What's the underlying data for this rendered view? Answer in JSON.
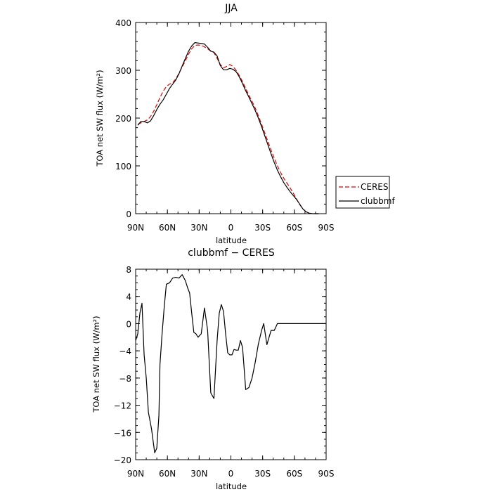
{
  "chart_data": [
    {
      "type": "line",
      "title": "JJA",
      "xlabel": "latitude",
      "ylabel": "TOA net SW flux (W/m²)",
      "xlim": [
        90,
        -90
      ],
      "ylim": [
        0,
        400
      ],
      "x_ticks": [
        90,
        60,
        30,
        0,
        -30,
        -60,
        -90
      ],
      "x_tick_labels": [
        "90N",
        "60N",
        "30N",
        "0",
        "30S",
        "60S",
        "90S"
      ],
      "y_ticks": [
        0,
        100,
        200,
        300,
        400
      ],
      "y_tick_labels": [
        "0",
        "100",
        "200",
        "300",
        "400"
      ],
      "legend": {
        "placement": "outside-right",
        "entries": [
          "CERES",
          "clubbmf"
        ]
      },
      "series": [
        {
          "name": "CERES",
          "color": "#e00000",
          "style": "dashed",
          "x": [
            88,
            85,
            82,
            79,
            76,
            73,
            70,
            67,
            64,
            61,
            58,
            55,
            52,
            49,
            46,
            43,
            40,
            37,
            34,
            31,
            28,
            25,
            22,
            19,
            16,
            13,
            10,
            7,
            4,
            1,
            -2,
            -5,
            -8,
            -11,
            -14,
            -17,
            -20,
            -23,
            -26,
            -29,
            -32,
            -35,
            -38,
            -41,
            -44,
            -47,
            -50,
            -53,
            -56,
            -59,
            -62,
            -65,
            -68,
            -71,
            -74,
            -77,
            -80,
            -83
          ],
          "values": [
            187,
            190,
            193,
            196,
            203,
            214,
            228,
            243,
            256,
            266,
            271,
            274,
            282,
            294,
            307,
            320,
            334,
            345,
            352,
            353,
            352,
            349,
            345,
            340,
            337,
            325,
            312,
            305,
            308,
            312,
            308,
            300,
            289,
            276,
            262,
            248,
            235,
            221,
            205,
            187,
            169,
            151,
            133,
            116,
            100,
            86,
            74,
            64,
            54,
            43,
            31,
            19,
            10,
            4,
            1,
            0,
            0,
            0
          ]
        },
        {
          "name": "clubbmf",
          "color": "#000000",
          "style": "solid",
          "x": [
            88,
            85,
            82,
            79,
            76,
            73,
            70,
            67,
            64,
            61,
            58,
            55,
            52,
            49,
            46,
            43,
            40,
            37,
            34,
            31,
            28,
            25,
            22,
            19,
            16,
            13,
            10,
            7,
            4,
            1,
            -2,
            -5,
            -8,
            -11,
            -14,
            -17,
            -20,
            -23,
            -26,
            -29,
            -32,
            -35,
            -38,
            -41,
            -44,
            -47,
            -50,
            -53,
            -56,
            -59,
            -62,
            -65,
            -68,
            -71,
            -74,
            -77,
            -80,
            -83
          ],
          "values": [
            185,
            193,
            193,
            190,
            194,
            205,
            218,
            229,
            238,
            250,
            262,
            271,
            280,
            293,
            309,
            325,
            340,
            351,
            358,
            357,
            356,
            355,
            348,
            340,
            338,
            330,
            310,
            301,
            301,
            304,
            302,
            297,
            286,
            272,
            257,
            244,
            230,
            216,
            200,
            182,
            163,
            144,
            125,
            107,
            91,
            77,
            65,
            55,
            46,
            38,
            30,
            20,
            10,
            4,
            1,
            0,
            0,
            0
          ]
        }
      ]
    },
    {
      "type": "line",
      "title": "clubbmf − CERES",
      "xlabel": "latitude",
      "ylabel": "TOA net SW flux (W/m²)",
      "xlim": [
        90,
        -90
      ],
      "ylim": [
        -20,
        8
      ],
      "x_ticks": [
        90,
        60,
        30,
        0,
        -30,
        -60,
        -90
      ],
      "x_tick_labels": [
        "90N",
        "60N",
        "30N",
        "0",
        "30S",
        "60S",
        "90S"
      ],
      "y_ticks": [
        8,
        4,
        0,
        -4,
        -8,
        -12,
        -16,
        -20
      ],
      "y_tick_labels": [
        "8",
        "4",
        "0",
        "−4",
        "−8",
        "−12",
        "−16",
        "−20"
      ],
      "series": [
        {
          "color": "#000000",
          "style": "solid",
          "x": [
            90,
            88,
            86,
            84,
            82,
            80,
            78,
            75,
            72,
            70,
            68,
            67,
            65,
            63,
            61,
            58,
            55,
            52,
            49,
            46,
            43,
            41,
            39,
            37,
            35,
            33,
            31,
            28,
            25,
            22,
            19,
            16,
            13,
            11,
            9,
            7,
            5,
            3,
            1,
            -1,
            -3,
            -5,
            -7,
            -9,
            -11,
            -14,
            -17,
            -20,
            -23,
            -26,
            -29,
            -31,
            -34,
            -38,
            -41,
            -44,
            -47,
            -50,
            -53,
            -56,
            -59,
            -62,
            -64,
            -66,
            -68,
            -70,
            -72,
            -74,
            -76,
            -78,
            -80,
            -84,
            -90
          ],
          "values": [
            -2.5,
            -1.5,
            1.5,
            3.0,
            -4.5,
            -8.0,
            -13.0,
            -15.5,
            -19.0,
            -18.3,
            -13.5,
            -6.0,
            -1.5,
            2.5,
            5.8,
            6.0,
            6.7,
            6.8,
            6.7,
            7.2,
            6.3,
            5.3,
            4.5,
            1.5,
            -1.3,
            -1.5,
            -2.0,
            -1.5,
            2.3,
            -1.0,
            -10.2,
            -11.0,
            -2.5,
            1.5,
            2.8,
            1.8,
            -1.5,
            -4.3,
            -4.6,
            -4.6,
            -3.8,
            -3.9,
            -3.9,
            -2.5,
            -3.5,
            -9.7,
            -9.4,
            -8.0,
            -5.7,
            -3.0,
            -1.0,
            0.0,
            -3.1,
            -1.0,
            -1.0,
            0.0,
            0.0,
            0.0,
            0.0,
            0.0,
            0.0,
            0.0,
            0.0,
            0.0,
            0.0,
            0.0,
            0.0,
            0.0,
            0.0,
            0.0,
            0.0,
            0.0,
            0.0
          ]
        }
      ]
    }
  ]
}
